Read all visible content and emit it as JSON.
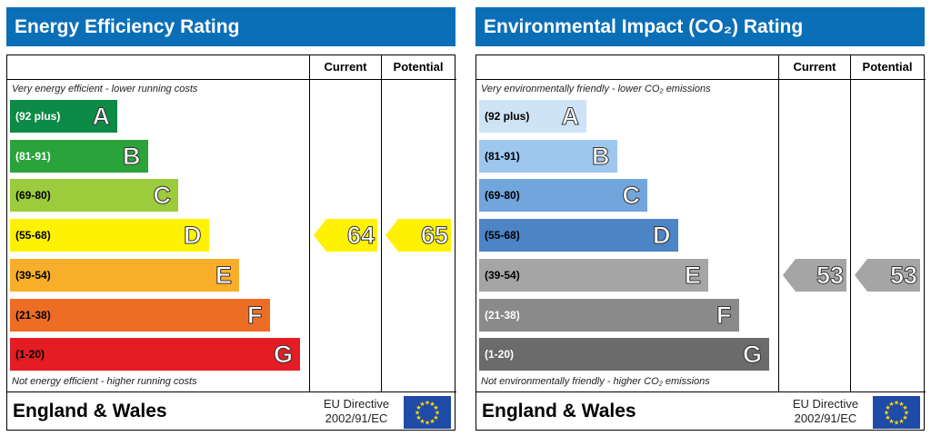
{
  "chart_data": [
    {
      "type": "bar",
      "title": "Energy Efficiency Rating",
      "columns": [
        "Current",
        "Potential"
      ],
      "top_caption": "Very energy efficient - lower running costs",
      "bottom_caption": "Not energy efficient - higher running costs",
      "bands": [
        {
          "range": "(92 plus)",
          "letter": "A",
          "color": "#0e8a47",
          "dark_text": false
        },
        {
          "range": "(81-91)",
          "letter": "B",
          "color": "#2ba33b",
          "dark_text": false
        },
        {
          "range": "(69-80)",
          "letter": "C",
          "color": "#9ccb3b",
          "dark_text": true
        },
        {
          "range": "(55-68)",
          "letter": "D",
          "color": "#fff200",
          "dark_text": true
        },
        {
          "range": "(39-54)",
          "letter": "E",
          "color": "#f9ae2a",
          "dark_text": true
        },
        {
          "range": "(21-38)",
          "letter": "F",
          "color": "#ee6d25",
          "dark_text": true
        },
        {
          "range": "(1-20)",
          "letter": "G",
          "color": "#e31d23",
          "dark_text": true
        }
      ],
      "current": {
        "value": "64",
        "color": "#fff200"
      },
      "potential": {
        "value": "65",
        "color": "#fff200"
      },
      "country": "England & Wales",
      "directive_line1": "EU Directive",
      "directive_line2": "2002/91/EC"
    },
    {
      "type": "bar",
      "title": "Environmental Impact (CO₂) Rating",
      "columns": [
        "Current",
        "Potential"
      ],
      "top_caption": "Very environmentally friendly - lower CO₂ emissions",
      "bottom_caption": "Not environmentally friendly - higher CO₂ emissions",
      "bands": [
        {
          "range": "(92 plus)",
          "letter": "A",
          "color": "#cfe3f6",
          "dark_text": true
        },
        {
          "range": "(81-91)",
          "letter": "B",
          "color": "#9ec7ee",
          "dark_text": true
        },
        {
          "range": "(69-80)",
          "letter": "C",
          "color": "#71a5dc",
          "dark_text": true
        },
        {
          "range": "(55-68)",
          "letter": "D",
          "color": "#4d84c6",
          "dark_text": true
        },
        {
          "range": "(39-54)",
          "letter": "E",
          "color": "#a5a5a5",
          "dark_text": true
        },
        {
          "range": "(21-38)",
          "letter": "F",
          "color": "#8a8a8a",
          "dark_text": false
        },
        {
          "range": "(1-20)",
          "letter": "G",
          "color": "#6b6b6b",
          "dark_text": false
        }
      ],
      "current": {
        "value": "53",
        "color": "#a5a5a5"
      },
      "potential": {
        "value": "53",
        "color": "#a5a5a5"
      },
      "country": "England & Wales",
      "directive_line1": "EU Directive",
      "directive_line2": "2002/91/EC"
    }
  ]
}
